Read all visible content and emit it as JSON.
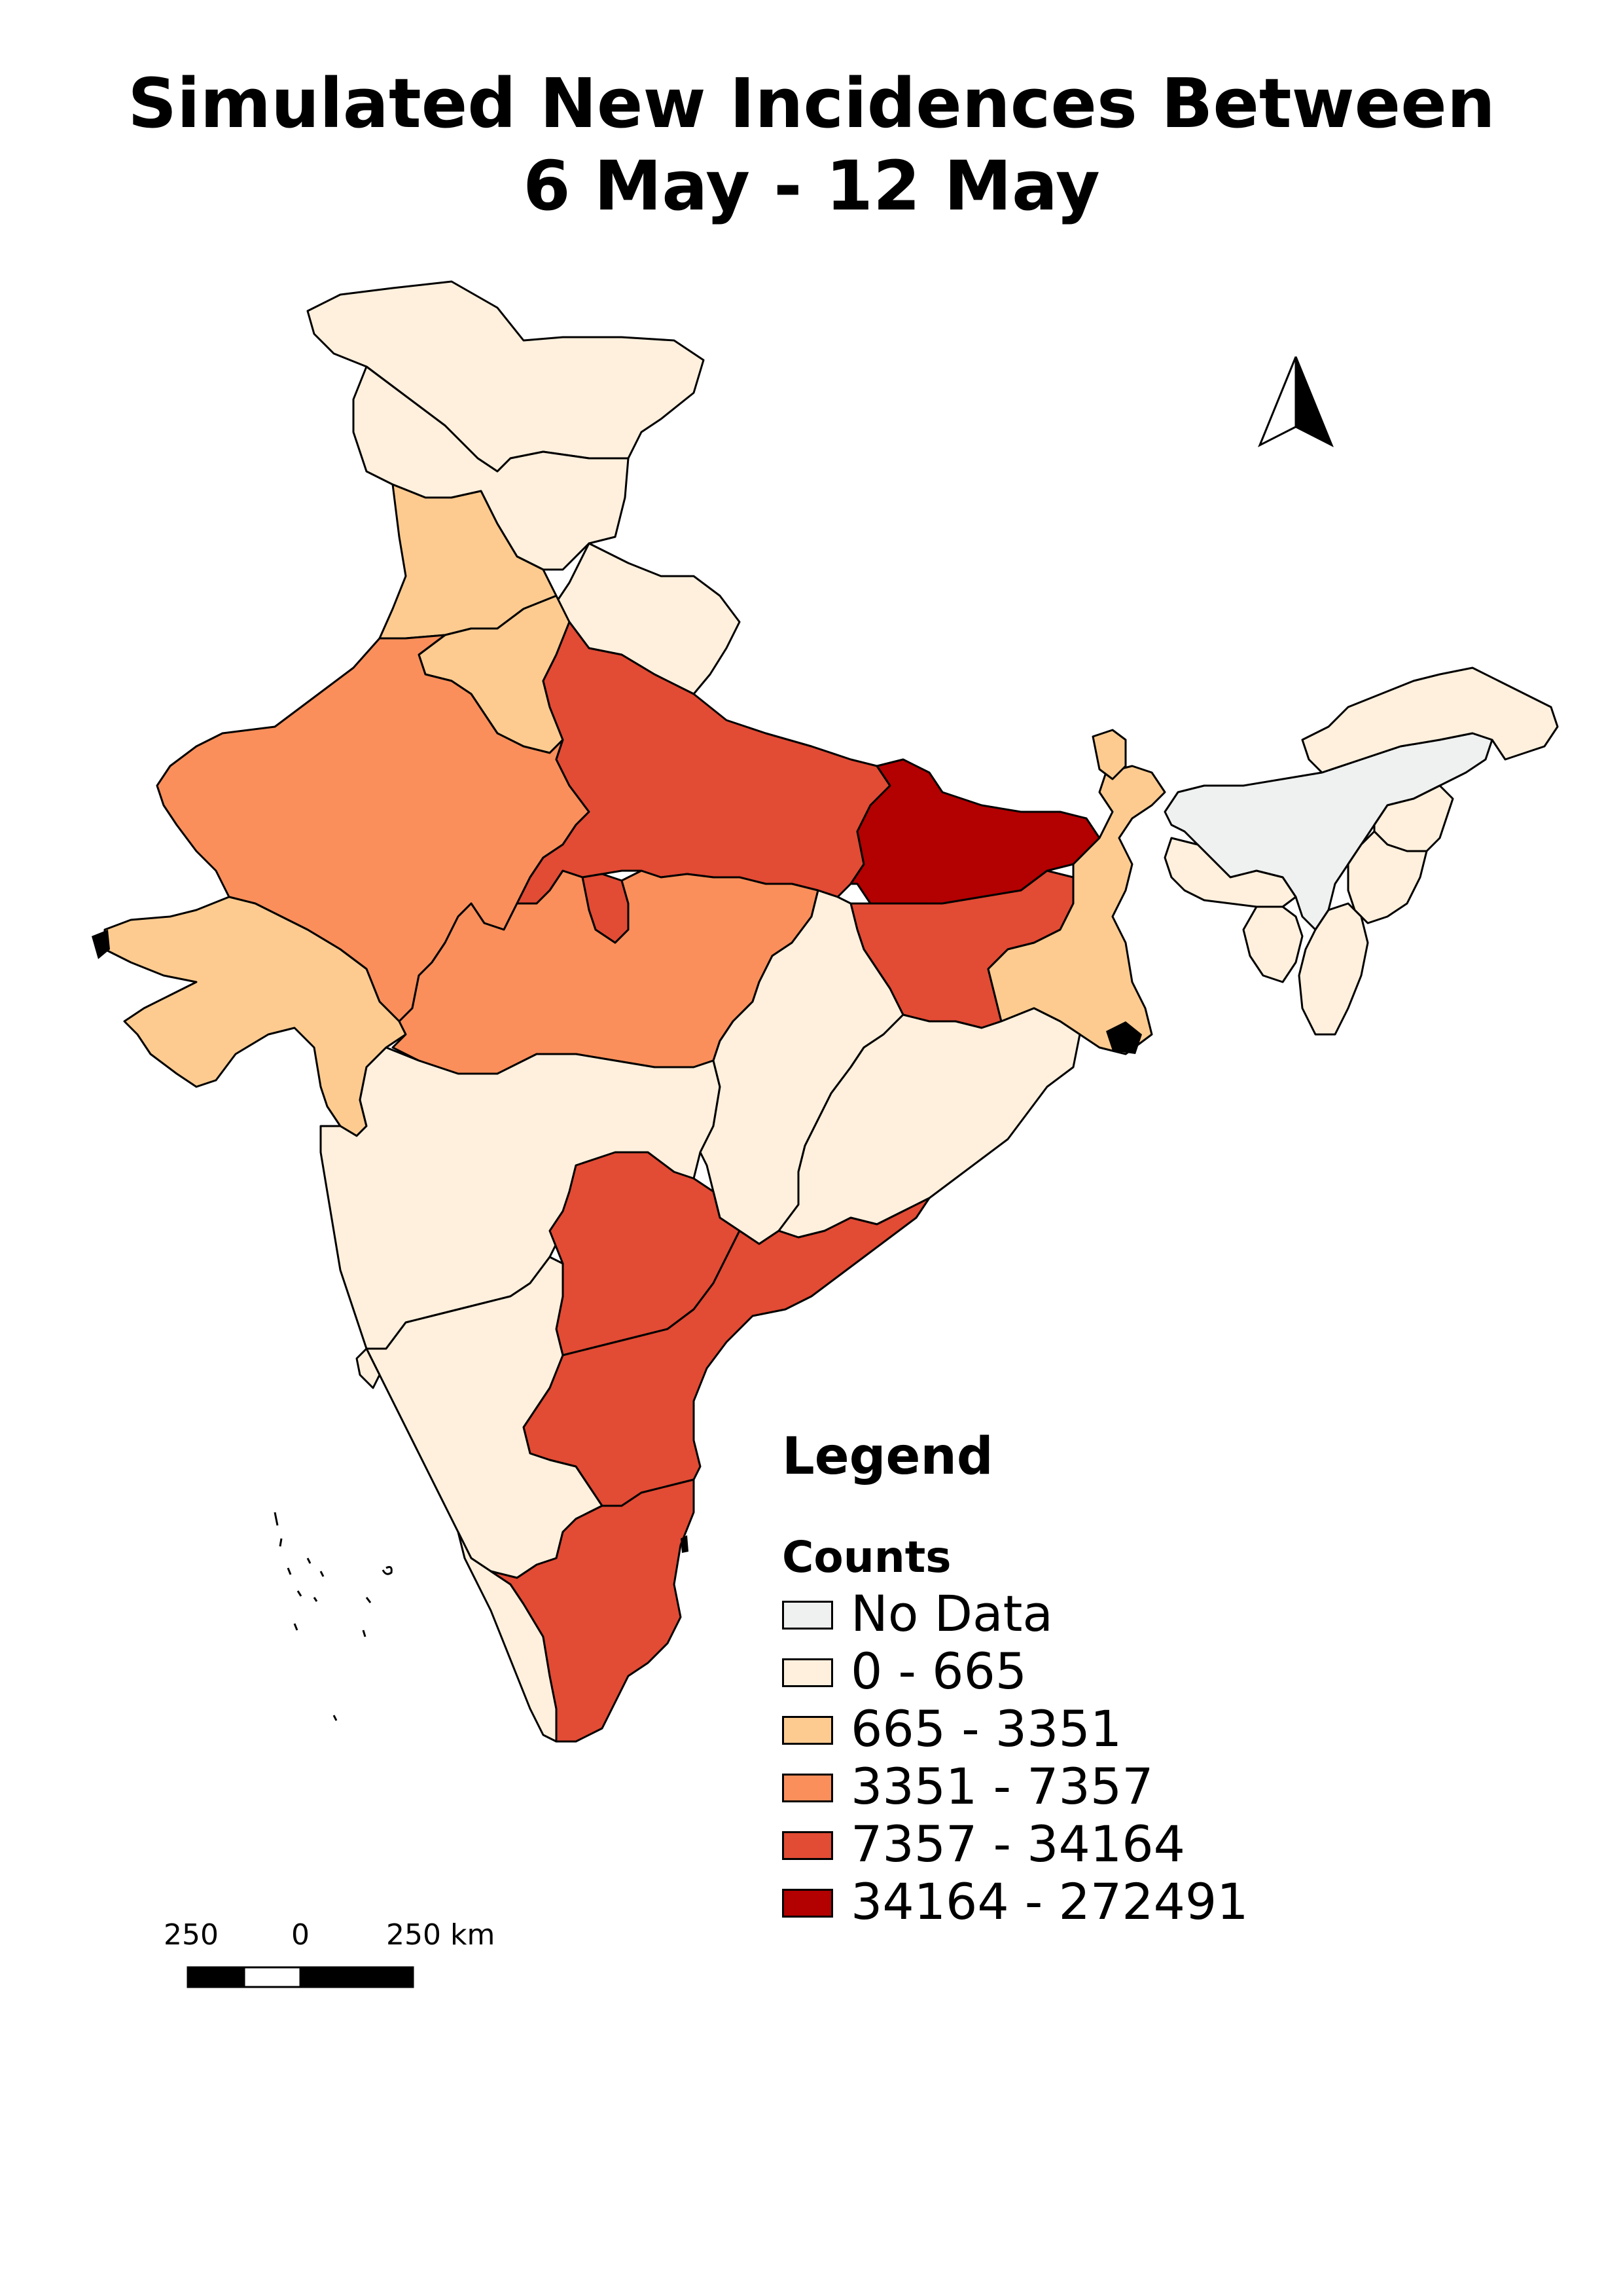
{
  "title": {
    "line1": "Simulated New Incidences Between",
    "line2": "6 May - 12 May"
  },
  "legend": {
    "title": "Legend",
    "subtitle": "Counts",
    "classes": [
      {
        "label": "No Data",
        "color": "#eff1f0"
      },
      {
        "label": " 0 - 665",
        "color": "#fff0dd"
      },
      {
        "label": " 665 - 3351",
        "color": "#fdcb90"
      },
      {
        "label": " 3351 - 7357",
        "color": "#fa8f5b"
      },
      {
        "label": " 7357 - 34164",
        "color": "#e24b34"
      },
      {
        "label": " 34164 - 272491",
        "color": "#b30000"
      }
    ]
  },
  "scale": {
    "labels": [
      "250",
      "0",
      "250 km"
    ]
  },
  "regions": [
    {
      "name": "jammu-kashmir",
      "class": 1
    },
    {
      "name": "himachal-pradesh",
      "class": 1
    },
    {
      "name": "punjab",
      "class": 2
    },
    {
      "name": "uttarakhand",
      "class": 1
    },
    {
      "name": "haryana",
      "class": 2
    },
    {
      "name": "rajasthan",
      "class": 3
    },
    {
      "name": "uttar-pradesh",
      "class": 4
    },
    {
      "name": "bihar",
      "class": 5
    },
    {
      "name": "gujarat",
      "class": 2
    },
    {
      "name": "madhya-pradesh",
      "class": 3
    },
    {
      "name": "jharkhand",
      "class": 4
    },
    {
      "name": "west-bengal",
      "class": 2
    },
    {
      "name": "sikkim",
      "class": 2
    },
    {
      "name": "maharashtra",
      "class": 1
    },
    {
      "name": "chhattisgarh",
      "class": 1
    },
    {
      "name": "odisha",
      "class": 1
    },
    {
      "name": "telangana",
      "class": 4
    },
    {
      "name": "andhra-pradesh",
      "class": 4
    },
    {
      "name": "karnataka",
      "class": 1
    },
    {
      "name": "tamil-nadu",
      "class": 4
    },
    {
      "name": "kerala",
      "class": 1
    },
    {
      "name": "goa",
      "class": 1
    },
    {
      "name": "assam",
      "class": 0
    },
    {
      "name": "arunachal-pradesh",
      "class": 1
    },
    {
      "name": "meghalaya",
      "class": 1
    },
    {
      "name": "nagaland",
      "class": 1
    },
    {
      "name": "manipur",
      "class": 1
    },
    {
      "name": "mizoram",
      "class": 1
    },
    {
      "name": "tripura",
      "class": 1
    }
  ]
}
